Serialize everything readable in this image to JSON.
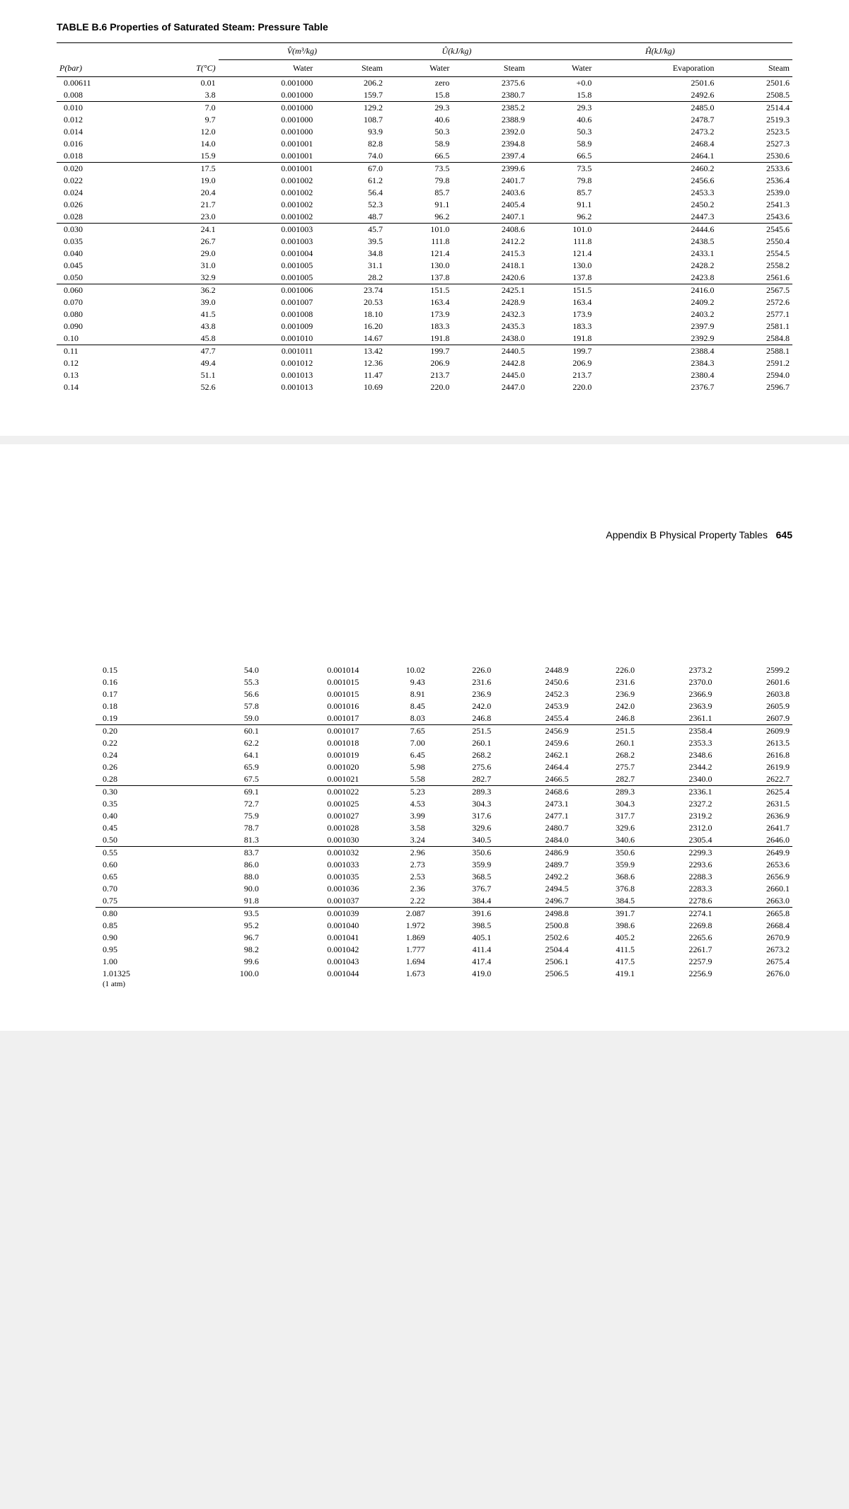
{
  "title": "TABLE B.6  Properties of Saturated Steam: Pressure Table",
  "appendix": "Appendix B   Physical Property Tables",
  "page_num": "645",
  "group_headers": [
    "V̂(m³/kg)",
    "Û(kJ/kg)",
    "Ĥ(kJ/kg)"
  ],
  "columns": [
    "P(bar)",
    "T(°C)",
    "Water",
    "Steam",
    "Water",
    "Steam",
    "Water",
    "Evaporation",
    "Steam"
  ],
  "footnote": "(1 atm)",
  "page1_groups": [
    [
      [
        "0.00611",
        "0.01",
        "0.001000",
        "206.2",
        "zero",
        "2375.6",
        "+0.0",
        "2501.6",
        "2501.6"
      ],
      [
        "0.008",
        "3.8",
        "0.001000",
        "159.7",
        "15.8",
        "2380.7",
        "15.8",
        "2492.6",
        "2508.5"
      ]
    ],
    [
      [
        "0.010",
        "7.0",
        "0.001000",
        "129.2",
        "29.3",
        "2385.2",
        "29.3",
        "2485.0",
        "2514.4"
      ],
      [
        "0.012",
        "9.7",
        "0.001000",
        "108.7",
        "40.6",
        "2388.9",
        "40.6",
        "2478.7",
        "2519.3"
      ],
      [
        "0.014",
        "12.0",
        "0.001000",
        "93.9",
        "50.3",
        "2392.0",
        "50.3",
        "2473.2",
        "2523.5"
      ],
      [
        "0.016",
        "14.0",
        "0.001001",
        "82.8",
        "58.9",
        "2394.8",
        "58.9",
        "2468.4",
        "2527.3"
      ],
      [
        "0.018",
        "15.9",
        "0.001001",
        "74.0",
        "66.5",
        "2397.4",
        "66.5",
        "2464.1",
        "2530.6"
      ]
    ],
    [
      [
        "0.020",
        "17.5",
        "0.001001",
        "67.0",
        "73.5",
        "2399.6",
        "73.5",
        "2460.2",
        "2533.6"
      ],
      [
        "0.022",
        "19.0",
        "0.001002",
        "61.2",
        "79.8",
        "2401.7",
        "79.8",
        "2456.6",
        "2536.4"
      ],
      [
        "0.024",
        "20.4",
        "0.001002",
        "56.4",
        "85.7",
        "2403.6",
        "85.7",
        "2453.3",
        "2539.0"
      ],
      [
        "0.026",
        "21.7",
        "0.001002",
        "52.3",
        "91.1",
        "2405.4",
        "91.1",
        "2450.2",
        "2541.3"
      ],
      [
        "0.028",
        "23.0",
        "0.001002",
        "48.7",
        "96.2",
        "2407.1",
        "96.2",
        "2447.3",
        "2543.6"
      ]
    ],
    [
      [
        "0.030",
        "24.1",
        "0.001003",
        "45.7",
        "101.0",
        "2408.6",
        "101.0",
        "2444.6",
        "2545.6"
      ],
      [
        "0.035",
        "26.7",
        "0.001003",
        "39.5",
        "111.8",
        "2412.2",
        "111.8",
        "2438.5",
        "2550.4"
      ],
      [
        "0.040",
        "29.0",
        "0.001004",
        "34.8",
        "121.4",
        "2415.3",
        "121.4",
        "2433.1",
        "2554.5"
      ],
      [
        "0.045",
        "31.0",
        "0.001005",
        "31.1",
        "130.0",
        "2418.1",
        "130.0",
        "2428.2",
        "2558.2"
      ],
      [
        "0.050",
        "32.9",
        "0.001005",
        "28.2",
        "137.8",
        "2420.6",
        "137.8",
        "2423.8",
        "2561.6"
      ]
    ],
    [
      [
        "0.060",
        "36.2",
        "0.001006",
        "23.74",
        "151.5",
        "2425.1",
        "151.5",
        "2416.0",
        "2567.5"
      ],
      [
        "0.070",
        "39.0",
        "0.001007",
        "20.53",
        "163.4",
        "2428.9",
        "163.4",
        "2409.2",
        "2572.6"
      ],
      [
        "0.080",
        "41.5",
        "0.001008",
        "18.10",
        "173.9",
        "2432.3",
        "173.9",
        "2403.2",
        "2577.1"
      ],
      [
        "0.090",
        "43.8",
        "0.001009",
        "16.20",
        "183.3",
        "2435.3",
        "183.3",
        "2397.9",
        "2581.1"
      ],
      [
        "0.10",
        "45.8",
        "0.001010",
        "14.67",
        "191.8",
        "2438.0",
        "191.8",
        "2392.9",
        "2584.8"
      ]
    ],
    [
      [
        "0.11",
        "47.7",
        "0.001011",
        "13.42",
        "199.7",
        "2440.5",
        "199.7",
        "2388.4",
        "2588.1"
      ],
      [
        "0.12",
        "49.4",
        "0.001012",
        "12.36",
        "206.9",
        "2442.8",
        "206.9",
        "2384.3",
        "2591.2"
      ],
      [
        "0.13",
        "51.1",
        "0.001013",
        "11.47",
        "213.7",
        "2445.0",
        "213.7",
        "2380.4",
        "2594.0"
      ],
      [
        "0.14",
        "52.6",
        "0.001013",
        "10.69",
        "220.0",
        "2447.0",
        "220.0",
        "2376.7",
        "2596.7"
      ]
    ]
  ],
  "page2_groups": [
    [
      [
        "0.15",
        "54.0",
        "0.001014",
        "10.02",
        "226.0",
        "2448.9",
        "226.0",
        "2373.2",
        "2599.2"
      ],
      [
        "0.16",
        "55.3",
        "0.001015",
        "9.43",
        "231.6",
        "2450.6",
        "231.6",
        "2370.0",
        "2601.6"
      ],
      [
        "0.17",
        "56.6",
        "0.001015",
        "8.91",
        "236.9",
        "2452.3",
        "236.9",
        "2366.9",
        "2603.8"
      ],
      [
        "0.18",
        "57.8",
        "0.001016",
        "8.45",
        "242.0",
        "2453.9",
        "242.0",
        "2363.9",
        "2605.9"
      ],
      [
        "0.19",
        "59.0",
        "0.001017",
        "8.03",
        "246.8",
        "2455.4",
        "246.8",
        "2361.1",
        "2607.9"
      ]
    ],
    [
      [
        "0.20",
        "60.1",
        "0.001017",
        "7.65",
        "251.5",
        "2456.9",
        "251.5",
        "2358.4",
        "2609.9"
      ],
      [
        "0.22",
        "62.2",
        "0.001018",
        "7.00",
        "260.1",
        "2459.6",
        "260.1",
        "2353.3",
        "2613.5"
      ],
      [
        "0.24",
        "64.1",
        "0.001019",
        "6.45",
        "268.2",
        "2462.1",
        "268.2",
        "2348.6",
        "2616.8"
      ],
      [
        "0.26",
        "65.9",
        "0.001020",
        "5.98",
        "275.6",
        "2464.4",
        "275.7",
        "2344.2",
        "2619.9"
      ],
      [
        "0.28",
        "67.5",
        "0.001021",
        "5.58",
        "282.7",
        "2466.5",
        "282.7",
        "2340.0",
        "2622.7"
      ]
    ],
    [
      [
        "0.30",
        "69.1",
        "0.001022",
        "5.23",
        "289.3",
        "2468.6",
        "289.3",
        "2336.1",
        "2625.4"
      ],
      [
        "0.35",
        "72.7",
        "0.001025",
        "4.53",
        "304.3",
        "2473.1",
        "304.3",
        "2327.2",
        "2631.5"
      ],
      [
        "0.40",
        "75.9",
        "0.001027",
        "3.99",
        "317.6",
        "2477.1",
        "317.7",
        "2319.2",
        "2636.9"
      ],
      [
        "0.45",
        "78.7",
        "0.001028",
        "3.58",
        "329.6",
        "2480.7",
        "329.6",
        "2312.0",
        "2641.7"
      ],
      [
        "0.50",
        "81.3",
        "0.001030",
        "3.24",
        "340.5",
        "2484.0",
        "340.6",
        "2305.4",
        "2646.0"
      ]
    ],
    [
      [
        "0.55",
        "83.7",
        "0.001032",
        "2.96",
        "350.6",
        "2486.9",
        "350.6",
        "2299.3",
        "2649.9"
      ],
      [
        "0.60",
        "86.0",
        "0.001033",
        "2.73",
        "359.9",
        "2489.7",
        "359.9",
        "2293.6",
        "2653.6"
      ],
      [
        "0.65",
        "88.0",
        "0.001035",
        "2.53",
        "368.5",
        "2492.2",
        "368.6",
        "2288.3",
        "2656.9"
      ],
      [
        "0.70",
        "90.0",
        "0.001036",
        "2.36",
        "376.7",
        "2494.5",
        "376.8",
        "2283.3",
        "2660.1"
      ],
      [
        "0.75",
        "91.8",
        "0.001037",
        "2.22",
        "384.4",
        "2496.7",
        "384.5",
        "2278.6",
        "2663.0"
      ]
    ],
    [
      [
        "0.80",
        "93.5",
        "0.001039",
        "2.087",
        "391.6",
        "2498.8",
        "391.7",
        "2274.1",
        "2665.8"
      ],
      [
        "0.85",
        "95.2",
        "0.001040",
        "1.972",
        "398.5",
        "2500.8",
        "398.6",
        "2269.8",
        "2668.4"
      ],
      [
        "0.90",
        "96.7",
        "0.001041",
        "1.869",
        "405.1",
        "2502.6",
        "405.2",
        "2265.6",
        "2670.9"
      ],
      [
        "0.95",
        "98.2",
        "0.001042",
        "1.777",
        "411.4",
        "2504.4",
        "411.5",
        "2261.7",
        "2673.2"
      ],
      [
        "1.00",
        "99.6",
        "0.001043",
        "1.694",
        "417.4",
        "2506.1",
        "417.5",
        "2257.9",
        "2675.4"
      ],
      [
        "1.01325",
        "100.0",
        "0.001044",
        "1.673",
        "419.0",
        "2506.5",
        "419.1",
        "2256.9",
        "2676.0"
      ]
    ]
  ]
}
